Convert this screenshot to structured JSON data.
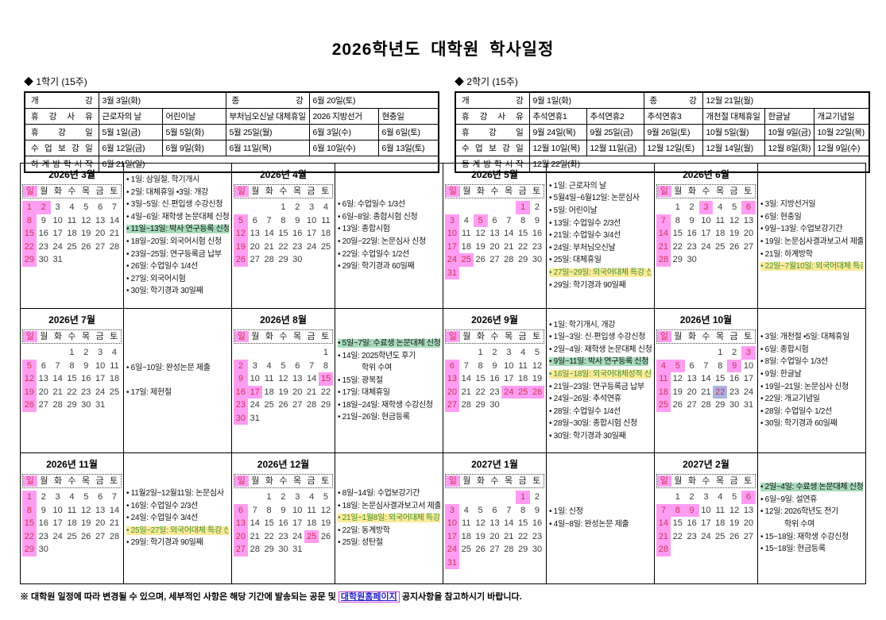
{
  "title": "2026학년도 대학원 학사일정",
  "weekday_labels": [
    "일",
    "월",
    "화",
    "수",
    "목",
    "금",
    "토"
  ],
  "colors": {
    "sunday_bg": "#ff9df2",
    "anniversary_bg": "#a9b3e3",
    "green_highlight": "#a7dcbb",
    "yellow_highlight": "#fdea96",
    "holiday_text": "#cc3355",
    "yellow_highlight_text": "#3f8f3a",
    "link_text": "#2222cc",
    "link_box": "#cc44cc"
  },
  "semesters": [
    {
      "heading": "◆ 1학기 (15주)",
      "open_label": "개 강",
      "open_value": "3월 3일(화)",
      "close_label": "종 강",
      "close_value": "6월 20일(토)",
      "reason_label": "휴 강 사 유",
      "reasons": [
        "근로자의 날",
        "어린이날",
        "부처님오신날 대체휴일",
        "2026 지방선거",
        "현충일"
      ],
      "holiday_label": "휴 강 일",
      "holidays": [
        "5월 1일(금)",
        "5월 5일(화)",
        "5월 25일(월)",
        "6월 3일(수)",
        "6월 6일(토)"
      ],
      "makeup_label": "수 업 보 강 일",
      "makeups": [
        "6월 12일(금)",
        "6월 9일(화)",
        "6월 11일(목)",
        "6월 10일(수)",
        "6월 13일(토)"
      ],
      "vacation_label": "하 계 방 학 시 작",
      "vacation_value": "6월 21일(일)"
    },
    {
      "heading": "◆ 2학기 (15주)",
      "open_label": "개 강",
      "open_value": "9월 1일(화)",
      "close_label": "종 강",
      "close_value": "12월 21일(월)",
      "reason_label": "휴 강 사 유",
      "reasons": [
        "추석연휴1",
        "추석연휴2",
        "추석연휴3",
        "개천절 대체휴일",
        "한글날",
        "개교기념일"
      ],
      "holiday_label": "휴 강 일",
      "holidays": [
        "9월 24일(목)",
        "9월 25일(금)",
        "9월 26일(토)",
        "10월 5일(월)",
        "10월 9일(금)",
        "10월 22일(목)"
      ],
      "makeup_label": "수 업 보 강 일",
      "makeups": [
        "12월 10일(목)",
        "12월 11일(금)",
        "12월 12일(토)",
        "12월 14일(월)",
        "12월 8일(화)",
        "12월 9일(수)"
      ],
      "vacation_label": "동 계 방 학 시 작",
      "vacation_value": "12월 22일(화)"
    }
  ],
  "months": [
    {
      "title": "2026년 3월",
      "weeks": [
        [
          1,
          2,
          3,
          4,
          5,
          6,
          7
        ],
        [
          8,
          9,
          10,
          11,
          12,
          13,
          14
        ],
        [
          15,
          16,
          17,
          18,
          19,
          20,
          21
        ],
        [
          22,
          23,
          24,
          25,
          26,
          27,
          28
        ],
        [
          29,
          30,
          31,
          "",
          "",
          "",
          ""
        ]
      ],
      "hl": {
        "1": "pink",
        "2": "pink",
        "8": "pink",
        "15": "pink",
        "22": "pink",
        "29": "pink"
      },
      "notes": [
        "1일: 삼일절, 학기개시",
        "2일: 대체휴일 •3일: 개강",
        "3일~5일: 신·편입생 수강신청",
        "4일~6일: 재학생 논문대체 신청",
        {
          "t": "11일~13일: 박사 연구등록 신청",
          "hl": "green"
        },
        "18일~20일: 외국어시험 신청",
        "23일~25일: 연구등록금 납부",
        "26일: 수업일수 1/4선",
        "27일: 외국어시험",
        "30일: 학기경과 30일째"
      ]
    },
    {
      "title": "2026년 4월",
      "weeks": [
        [
          "",
          "",
          "",
          1,
          2,
          3,
          4
        ],
        [
          5,
          6,
          7,
          8,
          9,
          10,
          11
        ],
        [
          12,
          13,
          14,
          15,
          16,
          17,
          18
        ],
        [
          19,
          20,
          21,
          22,
          23,
          24,
          25
        ],
        [
          26,
          27,
          28,
          29,
          30,
          "",
          ""
        ]
      ],
      "hl": {
        "5": "pink",
        "12": "pink",
        "19": "pink",
        "26": "pink"
      },
      "notes": [
        "6일: 수업일수 1/3선",
        "6일~8일: 종합시험 신청",
        "13일: 종합시험",
        "20일~22일: 논문심사 신청",
        "22일: 수업일수 1/2선",
        "29일: 학기경과 60일째"
      ]
    },
    {
      "title": "2026년 5월",
      "weeks": [
        [
          "",
          "",
          "",
          "",
          "",
          1,
          2
        ],
        [
          3,
          4,
          5,
          6,
          7,
          8,
          9
        ],
        [
          10,
          11,
          12,
          13,
          14,
          15,
          16
        ],
        [
          17,
          18,
          19,
          20,
          21,
          22,
          23
        ],
        [
          24,
          25,
          26,
          27,
          28,
          29,
          30
        ],
        [
          31,
          "",
          "",
          "",
          "",
          "",
          ""
        ]
      ],
      "hl": {
        "1": "pink",
        "3": "pink",
        "5": "pink",
        "10": "pink",
        "17": "pink",
        "24": "pink",
        "25": "pink",
        "31": "pink"
      },
      "notes": [
        "1일: 근로자의 날",
        "5월4일~6월12일: 논문심사",
        "5일: 어린이날",
        "13일: 수업일수 2/3선",
        "21일: 수업일수 3/4선",
        "24일: 부처님오신날",
        "25일: 대체휴일",
        {
          "t": "27일~29일: 외국어대체 특강 신청",
          "hl": "yellow"
        },
        "29일: 학기경과 90일째"
      ]
    },
    {
      "title": "2026년 6월",
      "weeks": [
        [
          "",
          1,
          2,
          3,
          4,
          5,
          6
        ],
        [
          7,
          8,
          9,
          10,
          11,
          12,
          13
        ],
        [
          14,
          15,
          16,
          17,
          18,
          19,
          20
        ],
        [
          21,
          22,
          23,
          24,
          25,
          26,
          27
        ],
        [
          28,
          29,
          30,
          "",
          "",
          "",
          ""
        ]
      ],
      "hl": {
        "3": "pink",
        "6": "pink",
        "7": "pink",
        "14": "pink",
        "21": "pink",
        "28": "pink"
      },
      "notes": [
        "3일: 지방선거일",
        "6일: 현충일",
        "9일~13일: 수업보강기간",
        "19일: 논문심사결과보고서 제출",
        "21일: 하계방학",
        {
          "t": "22일~7월10일: 외국어대체 특강 수강",
          "hl": "yellow"
        }
      ]
    },
    {
      "title": "2026년 7월",
      "weeks": [
        [
          "",
          "",
          "",
          1,
          2,
          3,
          4
        ],
        [
          5,
          6,
          7,
          8,
          9,
          10,
          11
        ],
        [
          12,
          13,
          14,
          15,
          16,
          17,
          18
        ],
        [
          19,
          20,
          21,
          22,
          23,
          24,
          25
        ],
        [
          26,
          27,
          28,
          29,
          30,
          31,
          ""
        ]
      ],
      "hl": {
        "5": "pink",
        "12": "pink",
        "19": "pink",
        "26": "pink"
      },
      "notes": [
        "6일~10일: 완성논문 제출",
        {
          "t": "17일: 제헌절",
          "gap": true
        }
      ]
    },
    {
      "title": "2026년 8월",
      "weeks": [
        [
          "",
          "",
          "",
          "",
          "",
          "",
          1
        ],
        [
          2,
          3,
          4,
          5,
          6,
          7,
          8
        ],
        [
          9,
          10,
          11,
          12,
          13,
          14,
          15
        ],
        [
          16,
          17,
          18,
          19,
          20,
          21,
          22
        ],
        [
          23,
          24,
          25,
          26,
          27,
          28,
          29
        ],
        [
          30,
          31,
          "",
          "",
          "",
          "",
          ""
        ]
      ],
      "hl": {
        "2": "pink",
        "9": "pink",
        "15": "pink",
        "16": "pink",
        "17": "pink",
        "23": "pink",
        "30": "pink"
      },
      "notes": [
        {
          "t": "5일~7일: 수료생 논문대체 신청",
          "hl": "green"
        },
        "14일: 2025학년도 후기",
        {
          "t": "학위 수여",
          "cont": true
        },
        "15일: 광복절",
        "17일: 대체휴일",
        "18일~24일: 재학생 수강신청",
        "21일~26일: 현금등록"
      ]
    },
    {
      "title": "2026년 9월",
      "weeks": [
        [
          "",
          "",
          1,
          2,
          3,
          4,
          5
        ],
        [
          6,
          7,
          8,
          9,
          10,
          11,
          12
        ],
        [
          13,
          14,
          15,
          16,
          17,
          18,
          19
        ],
        [
          20,
          21,
          22,
          23,
          24,
          25,
          26
        ],
        [
          27,
          28,
          29,
          30,
          "",
          "",
          ""
        ]
      ],
      "hl": {
        "6": "pink",
        "13": "pink",
        "20": "pink",
        "24": "pink",
        "25": "pink",
        "26": "pink",
        "27": "pink"
      },
      "notes": [
        "1일: 학기개시, 개강",
        "1일~3일: 신·편입생 수강신청",
        "2일~4일: 재학생 논문대체 신청",
        {
          "t": "9일~11일: 박사 연구등록 신청",
          "hl": "green"
        },
        {
          "t": "16일~18일: 외국어대체성적 신청",
          "hl": "yellow"
        },
        "21일~23일: 연구등록금 납부",
        "24일~26일: 추석연휴",
        "28일: 수업일수 1/4선",
        "28일~30일: 종합시험 신청",
        "30일: 학기경과 30일째"
      ]
    },
    {
      "title": "2026년 10월",
      "weeks": [
        [
          "",
          "",
          "",
          "",
          1,
          2,
          3
        ],
        [
          4,
          5,
          6,
          7,
          8,
          9,
          10
        ],
        [
          11,
          12,
          13,
          14,
          15,
          16,
          17
        ],
        [
          18,
          19,
          20,
          21,
          22,
          23,
          24
        ],
        [
          25,
          26,
          27,
          28,
          29,
          30,
          31
        ]
      ],
      "hl": {
        "3": "pink",
        "4": "pink",
        "5": "pink",
        "9": "pink",
        "11": "pink",
        "18": "pink",
        "22": "blue",
        "25": "pink"
      },
      "notes": [
        "3일: 개천절 •5일: 대체휴일",
        "6일: 종합시험",
        "8일: 수업일수 1/3선",
        "9일: 한글날",
        "19일~21일: 논문심사 신청",
        "22일: 개교기념일",
        "28일: 수업일수 1/2선",
        "30일: 학기경과 60일째"
      ]
    },
    {
      "title": "2026년 11월",
      "weeks": [
        [
          1,
          2,
          3,
          4,
          5,
          6,
          7
        ],
        [
          8,
          9,
          10,
          11,
          12,
          13,
          14
        ],
        [
          15,
          16,
          17,
          18,
          19,
          20,
          21
        ],
        [
          22,
          23,
          24,
          25,
          26,
          27,
          28
        ],
        [
          29,
          30,
          "",
          "",
          "",
          "",
          ""
        ]
      ],
      "hl": {
        "1": "pink",
        "8": "pink",
        "15": "pink",
        "22": "pink",
        "29": "pink"
      },
      "notes": [
        "11월2일~12월11일: 논문심사",
        "16일: 수업일수 2/3선",
        "24일: 수업일수 3/4선",
        {
          "t": "25일~27일: 외국어대체 특강 신청",
          "hl": "yellow"
        },
        "29일: 학기경과 90일째"
      ]
    },
    {
      "title": "2026년 12월",
      "weeks": [
        [
          "",
          "",
          1,
          2,
          3,
          4,
          5
        ],
        [
          6,
          7,
          8,
          9,
          10,
          11,
          12
        ],
        [
          13,
          14,
          15,
          16,
          17,
          18,
          19
        ],
        [
          20,
          21,
          22,
          23,
          24,
          25,
          26
        ],
        [
          27,
          28,
          29,
          30,
          31,
          "",
          ""
        ]
      ],
      "hl": {
        "6": "pink",
        "13": "pink",
        "20": "pink",
        "25": "pink",
        "27": "pink"
      },
      "notes": [
        "8일~14일: 수업보강기간",
        "18일: 논문심사결과보고서 제출",
        {
          "t": "21일~1월8일: 외국어대체 특강 수강",
          "hl": "yellow"
        },
        "22일: 동계방학",
        "25일: 성탄절"
      ]
    },
    {
      "title": "2027년 1월",
      "weeks": [
        [
          "",
          "",
          "",
          "",
          "",
          1,
          2
        ],
        [
          3,
          4,
          5,
          6,
          7,
          8,
          9
        ],
        [
          10,
          11,
          12,
          13,
          14,
          15,
          16
        ],
        [
          17,
          18,
          19,
          20,
          21,
          22,
          23
        ],
        [
          24,
          25,
          26,
          27,
          28,
          29,
          30
        ],
        [
          31,
          "",
          "",
          "",
          "",
          "",
          ""
        ]
      ],
      "hl": {
        "1": "pink",
        "3": "pink",
        "10": "pink",
        "17": "pink",
        "24": "pink",
        "31": "pink"
      },
      "notes": [
        "1일: 신정",
        "4일~8일: 완성논문 제출"
      ]
    },
    {
      "title": "2027년 2월",
      "weeks": [
        [
          "",
          1,
          2,
          3,
          4,
          5,
          6
        ],
        [
          7,
          8,
          9,
          10,
          11,
          12,
          13
        ],
        [
          14,
          15,
          16,
          17,
          18,
          19,
          20
        ],
        [
          21,
          22,
          23,
          24,
          25,
          26,
          27
        ],
        [
          28,
          "",
          "",
          "",
          "",
          "",
          ""
        ]
      ],
      "hl": {
        "6": "pink",
        "7": "pink",
        "8": "pink",
        "9": "pink",
        "14": "pink",
        "21": "pink",
        "28": "pink"
      },
      "notes": [
        {
          "t": "2일~4일: 수료생 논문대체 신청",
          "hl": "green"
        },
        "6일~9일: 설연휴",
        "12일: 2026학년도 전기",
        {
          "t": "학위 수여",
          "cont": true
        },
        "15~18일: 재학생 수강신청",
        "15~18일: 현금등록"
      ]
    }
  ],
  "footer": {
    "prefix": "※ 대학원 일정에 따라 변경될 수 있으며, 세부적인 사항은 해당 기간에 발송되는 공문 및 ",
    "link": "대학원홈페이지",
    "suffix": " 공지사항을 참고하시기 바랍니다."
  }
}
